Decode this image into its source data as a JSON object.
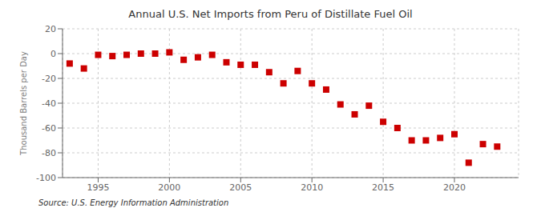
{
  "chart_data": {
    "type": "scatter",
    "title": "Annual U.S. Net Imports from Peru of Distillate Fuel Oil",
    "ylabel": "Thousand Barrels per Day",
    "annotations": [
      "Source: U.S. Energy Information Administration"
    ],
    "x": [
      1993,
      1994,
      1995,
      1996,
      1997,
      1998,
      1999,
      2000,
      2001,
      2002,
      2003,
      2004,
      2005,
      2006,
      2007,
      2008,
      2009,
      2010,
      2011,
      2012,
      2013,
      2014,
      2015,
      2016,
      2017,
      2018,
      2019,
      2020,
      2021,
      2022,
      2023
    ],
    "values": [
      -8,
      -12,
      -1,
      -2,
      -1,
      0,
      0,
      1,
      -5,
      -3,
      -1,
      -7,
      -9,
      -9,
      -15,
      -24,
      -14,
      -24,
      -29,
      -41,
      -49,
      -42,
      -55,
      -60,
      -70,
      -70,
      -68,
      -65,
      -88,
      -73,
      -75
    ],
    "color": "#cc0000",
    "marker": "square",
    "xlim": [
      1992.5,
      2024.5
    ],
    "xticks": [
      1995,
      2000,
      2005,
      2010,
      2015,
      2020
    ],
    "ylim": [
      -100,
      20
    ],
    "yticks": [
      -100,
      -80,
      -60,
      -40,
      -20,
      0,
      20
    ],
    "grid": true
  }
}
